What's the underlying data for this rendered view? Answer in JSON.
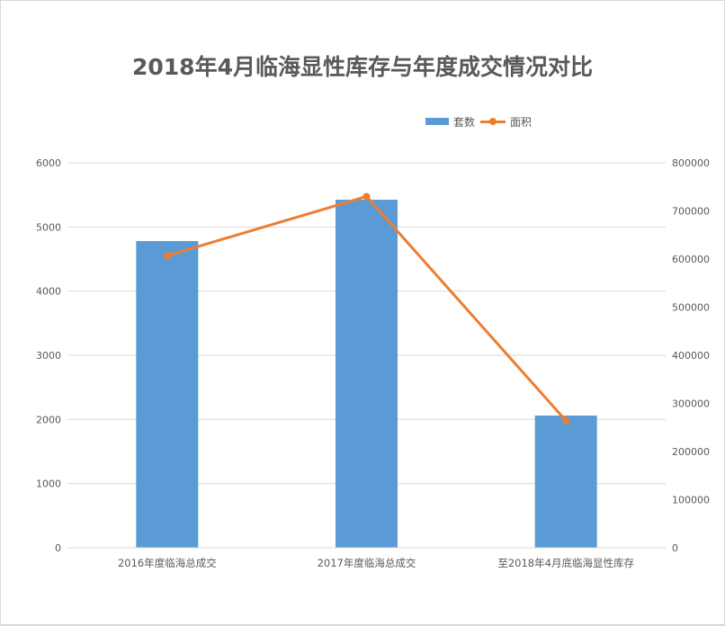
{
  "chart_data": {
    "type": "bar+line",
    "title": "2018年4月临海显性库存与年度成交情况对比",
    "categories": [
      "2016年度临海总成交",
      "2017年度临海总成交",
      "至2018年4月底临海显性库存"
    ],
    "series": [
      {
        "name": "套数",
        "type": "bar",
        "axis": "left",
        "color": "#5b9bd5",
        "values": [
          4780,
          5425,
          2060
        ]
      },
      {
        "name": "面积",
        "type": "line",
        "axis": "right",
        "color": "#ed7d31",
        "values": [
          607000,
          730000,
          264000
        ]
      }
    ],
    "left_axis": {
      "ylim": [
        0,
        6000
      ],
      "ticks": [
        "0",
        "1000",
        "2000",
        "3000",
        "4000",
        "5000",
        "6000"
      ]
    },
    "right_axis": {
      "ylim": [
        0,
        800000
      ],
      "ticks": [
        "0",
        "100000",
        "200000",
        "300000",
        "400000",
        "500000",
        "600000",
        "700000",
        "800000"
      ]
    },
    "xlabel": "",
    "ylabel": "",
    "grid": true,
    "legend_position": "top-right"
  },
  "legend": {
    "items": [
      {
        "label": "套数"
      },
      {
        "label": "面积"
      }
    ]
  }
}
